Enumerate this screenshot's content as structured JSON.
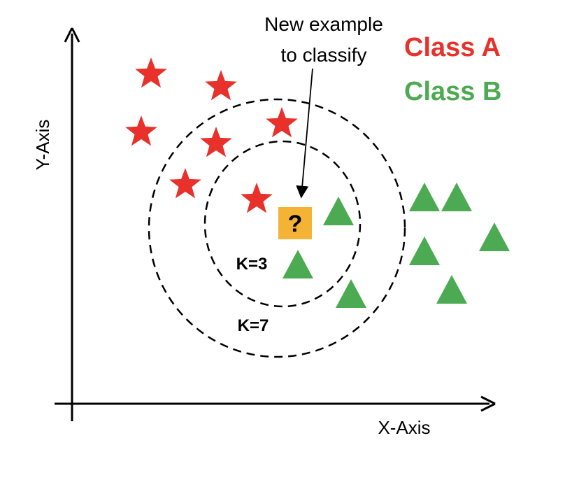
{
  "axes": {
    "x_label": "X-Axis",
    "y_label": "Y-Axis"
  },
  "legend": {
    "class_a": "Class A",
    "class_b": "Class B"
  },
  "annotation": {
    "new_example_line1": "New example",
    "new_example_line2": "to classify"
  },
  "query": {
    "symbol": "?"
  },
  "circles": {
    "k3_label": "K=3",
    "k7_label": "K=7"
  },
  "colors": {
    "class_a": "#e8312b",
    "class_b": "#4caa52",
    "query": "#f5b335",
    "line": "#000000"
  },
  "icons": {
    "class_a_marker": "star-icon",
    "class_b_marker": "triangle-icon"
  }
}
